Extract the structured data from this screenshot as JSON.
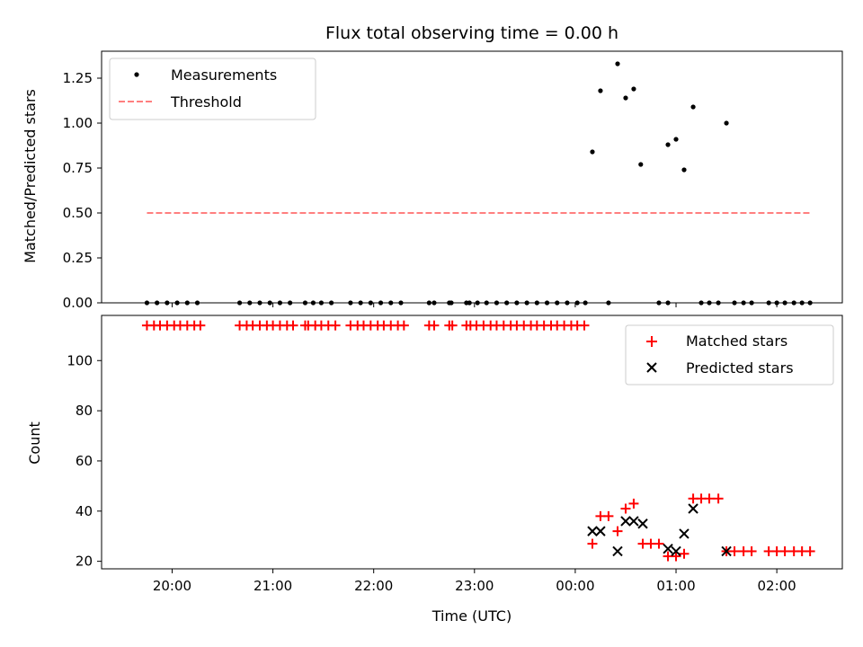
{
  "chart_data": [
    {
      "panel": "top",
      "type": "scatter",
      "title": "Flux total observing time = 0.00 h",
      "xlabel": "",
      "ylabel": "Matched/Predicted stars",
      "ylim": [
        0,
        1.4
      ],
      "yticks": [
        0.0,
        0.25,
        0.5,
        0.75,
        1.0,
        1.25
      ],
      "ytick_labels": [
        "0.00",
        "0.25",
        "0.50",
        "0.75",
        "1.00",
        "1.25"
      ],
      "legend": {
        "placement": "top-left",
        "entries": [
          "Measurements",
          "Threshold"
        ]
      },
      "series": [
        {
          "name": "Measurements",
          "marker": "dot",
          "color": "#000000",
          "points": [
            [
              19.75,
              0
            ],
            [
              19.85,
              0
            ],
            [
              19.95,
              0
            ],
            [
              20.05,
              0
            ],
            [
              20.15,
              0
            ],
            [
              20.25,
              0
            ],
            [
              20.67,
              0
            ],
            [
              20.77,
              0
            ],
            [
              20.87,
              0
            ],
            [
              20.97,
              0
            ],
            [
              21.07,
              0
            ],
            [
              21.17,
              0
            ],
            [
              21.32,
              0
            ],
            [
              21.4,
              0
            ],
            [
              21.48,
              0
            ],
            [
              21.58,
              0
            ],
            [
              21.77,
              0
            ],
            [
              21.87,
              0
            ],
            [
              21.97,
              0
            ],
            [
              22.07,
              0
            ],
            [
              22.17,
              0
            ],
            [
              22.27,
              0
            ],
            [
              22.55,
              0
            ],
            [
              22.6,
              0
            ],
            [
              22.75,
              0
            ],
            [
              22.77,
              0
            ],
            [
              22.92,
              0
            ],
            [
              22.95,
              0
            ],
            [
              23.03,
              0
            ],
            [
              23.12,
              0
            ],
            [
              23.22,
              0
            ],
            [
              23.32,
              0
            ],
            [
              23.42,
              0
            ],
            [
              23.52,
              0
            ],
            [
              23.62,
              0
            ],
            [
              23.72,
              0
            ],
            [
              23.82,
              0
            ],
            [
              23.92,
              0
            ],
            [
              24.02,
              0
            ],
            [
              24.1,
              0
            ],
            [
              24.17,
              0.84
            ],
            [
              24.25,
              1.18
            ],
            [
              24.42,
              1.33
            ],
            [
              24.5,
              1.14
            ],
            [
              24.58,
              1.19
            ],
            [
              24.65,
              0.77
            ],
            [
              24.92,
              0.88
            ],
            [
              25.0,
              0.91
            ],
            [
              25.08,
              0.74
            ],
            [
              25.17,
              1.09
            ],
            [
              25.5,
              1.0
            ],
            [
              24.33,
              0
            ],
            [
              24.83,
              0
            ],
            [
              24.92,
              0
            ],
            [
              25.25,
              0
            ],
            [
              25.33,
              0
            ],
            [
              25.42,
              0
            ],
            [
              25.58,
              0
            ],
            [
              25.67,
              0
            ],
            [
              25.75,
              0
            ],
            [
              25.92,
              0
            ],
            [
              26.0,
              0
            ],
            [
              26.08,
              0
            ],
            [
              26.17,
              0
            ],
            [
              26.25,
              0
            ],
            [
              26.33,
              0
            ]
          ]
        },
        {
          "name": "Threshold",
          "type": "line",
          "style": "dashed",
          "color": "#ff7f7f",
          "points": [
            [
              19.75,
              0.5
            ],
            [
              26.33,
              0.5
            ]
          ]
        }
      ]
    },
    {
      "panel": "bottom",
      "type": "scatter",
      "title": "",
      "xlabel": "Time (UTC)",
      "ylabel": "Count",
      "xlim": [
        19.3,
        26.65
      ],
      "ylim": [
        17,
        118
      ],
      "yticks": [
        20,
        40,
        60,
        80,
        100
      ],
      "ytick_labels": [
        "20",
        "40",
        "60",
        "80",
        "100"
      ],
      "xticks": [
        20,
        21,
        22,
        23,
        24,
        25,
        26
      ],
      "xtick_labels": [
        "20:00",
        "21:00",
        "22:00",
        "23:00",
        "00:00",
        "01:00",
        "02:00"
      ],
      "legend": {
        "placement": "top-right",
        "entries": [
          "Matched stars",
          "Predicted stars"
        ]
      },
      "series": [
        {
          "name": "Matched stars",
          "marker": "plus",
          "color": "#ff0000",
          "points": [
            [
              19.75,
              114
            ],
            [
              19.82,
              114
            ],
            [
              19.88,
              114
            ],
            [
              19.95,
              114
            ],
            [
              20.02,
              114
            ],
            [
              20.08,
              114
            ],
            [
              20.15,
              114
            ],
            [
              20.22,
              114
            ],
            [
              20.28,
              114
            ],
            [
              20.67,
              114
            ],
            [
              20.74,
              114
            ],
            [
              20.8,
              114
            ],
            [
              20.87,
              114
            ],
            [
              20.94,
              114
            ],
            [
              21.0,
              114
            ],
            [
              21.07,
              114
            ],
            [
              21.14,
              114
            ],
            [
              21.2,
              114
            ],
            [
              21.32,
              114
            ],
            [
              21.35,
              114
            ],
            [
              21.42,
              114
            ],
            [
              21.48,
              114
            ],
            [
              21.55,
              114
            ],
            [
              21.62,
              114
            ],
            [
              21.77,
              114
            ],
            [
              21.84,
              114
            ],
            [
              21.9,
              114
            ],
            [
              21.97,
              114
            ],
            [
              22.04,
              114
            ],
            [
              22.1,
              114
            ],
            [
              22.17,
              114
            ],
            [
              22.24,
              114
            ],
            [
              22.3,
              114
            ],
            [
              22.55,
              114
            ],
            [
              22.6,
              114
            ],
            [
              22.75,
              114
            ],
            [
              22.78,
              114
            ],
            [
              22.92,
              114
            ],
            [
              22.96,
              114
            ],
            [
              23.02,
              114
            ],
            [
              23.09,
              114
            ],
            [
              23.16,
              114
            ],
            [
              23.22,
              114
            ],
            [
              23.29,
              114
            ],
            [
              23.36,
              114
            ],
            [
              23.42,
              114
            ],
            [
              23.49,
              114
            ],
            [
              23.56,
              114
            ],
            [
              23.62,
              114
            ],
            [
              23.69,
              114
            ],
            [
              23.76,
              114
            ],
            [
              23.82,
              114
            ],
            [
              23.89,
              114
            ],
            [
              23.96,
              114
            ],
            [
              24.02,
              114
            ],
            [
              24.09,
              114
            ],
            [
              24.17,
              27
            ],
            [
              24.25,
              38
            ],
            [
              24.33,
              38
            ],
            [
              24.42,
              32
            ],
            [
              24.5,
              41
            ],
            [
              24.58,
              43
            ],
            [
              24.67,
              27
            ],
            [
              24.75,
              27
            ],
            [
              24.83,
              27
            ],
            [
              24.92,
              22
            ],
            [
              25.0,
              22
            ],
            [
              25.08,
              23
            ],
            [
              25.17,
              45
            ],
            [
              25.25,
              45
            ],
            [
              25.33,
              45
            ],
            [
              25.42,
              45
            ],
            [
              25.5,
              24
            ],
            [
              25.58,
              24
            ],
            [
              25.67,
              24
            ],
            [
              25.75,
              24
            ],
            [
              25.92,
              24
            ],
            [
              26.0,
              24
            ],
            [
              26.08,
              24
            ],
            [
              26.17,
              24
            ],
            [
              26.25,
              24
            ],
            [
              26.33,
              24
            ]
          ]
        },
        {
          "name": "Predicted stars",
          "marker": "x",
          "color": "#000000",
          "points": [
            [
              24.17,
              32
            ],
            [
              24.25,
              32
            ],
            [
              24.42,
              24
            ],
            [
              24.5,
              36
            ],
            [
              24.58,
              36
            ],
            [
              24.67,
              35
            ],
            [
              24.92,
              25
            ],
            [
              25.0,
              24
            ],
            [
              25.08,
              31
            ],
            [
              25.17,
              41
            ],
            [
              25.5,
              24
            ]
          ]
        }
      ]
    }
  ]
}
